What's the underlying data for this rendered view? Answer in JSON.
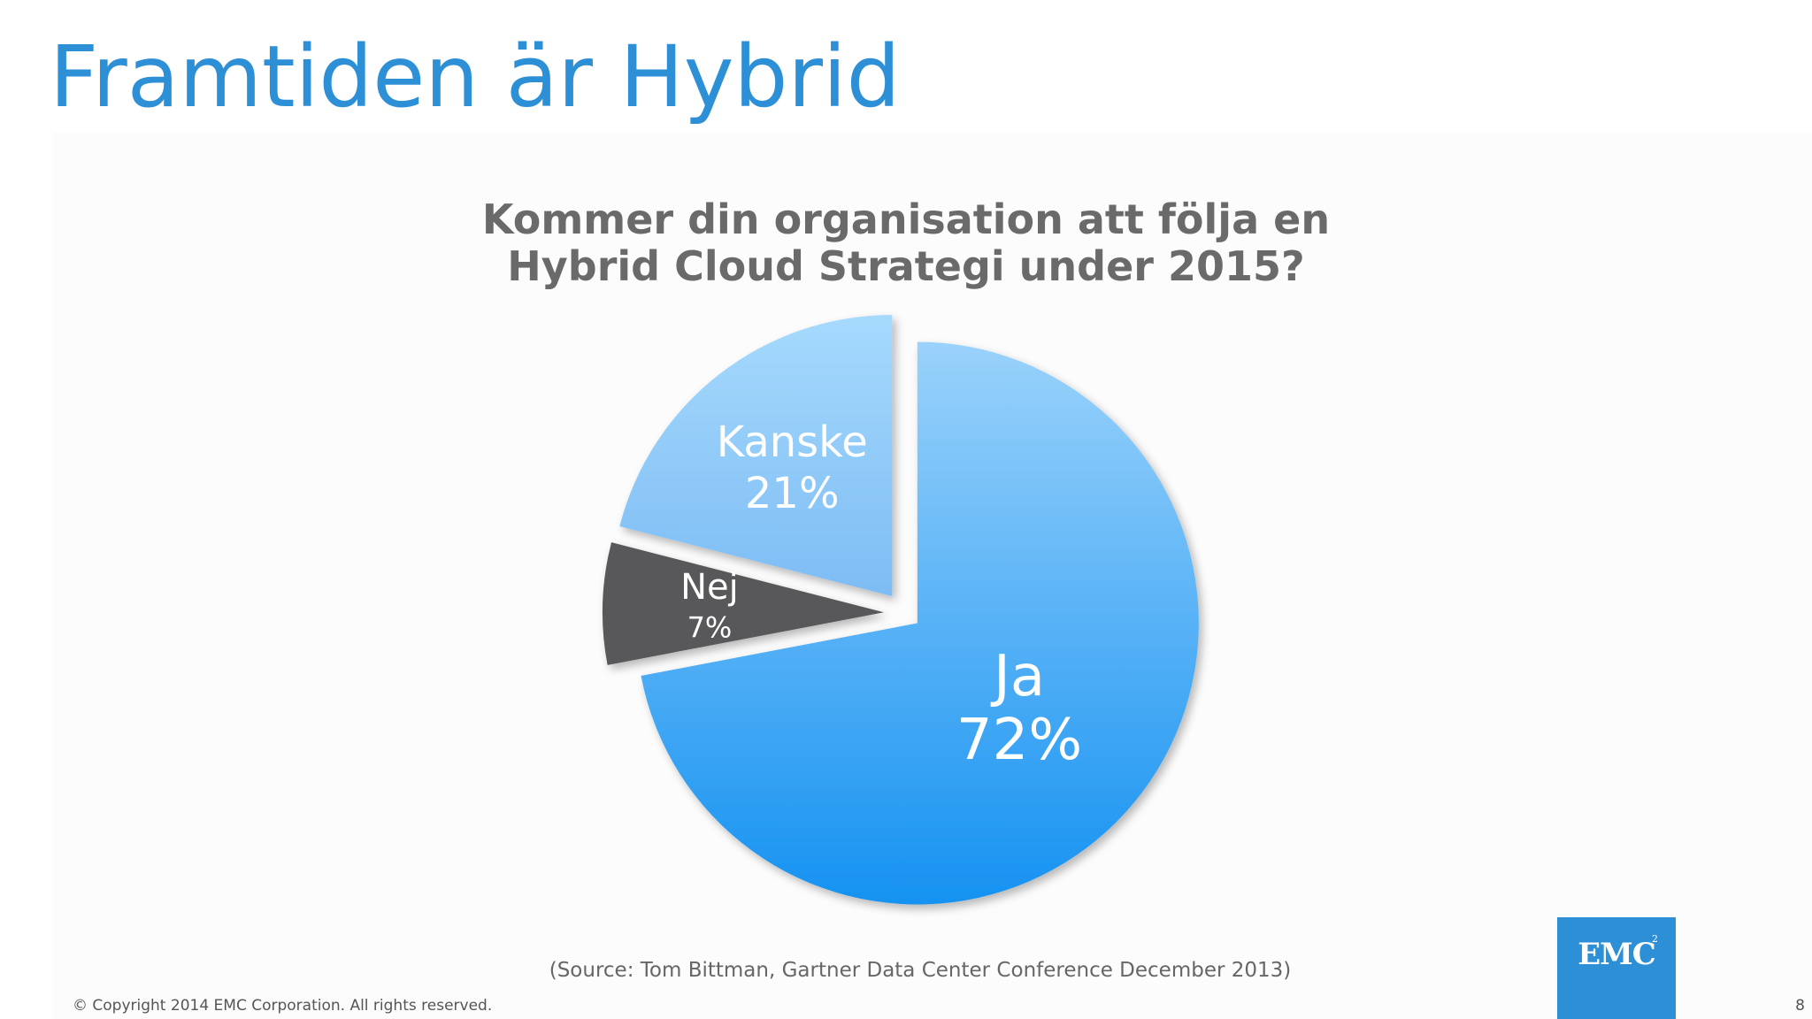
{
  "slide": {
    "title": "Framtiden är Hybrid",
    "source": "(Source: Tom Bittman, Gartner Data Center Conference December 2013)",
    "copyright": "© Copyright 2014 EMC Corporation. All rights reserved.",
    "page_number": "8",
    "logo_text": "EMC",
    "logo_superscript": "2",
    "logo_color": "#2d8fd6",
    "title_color": "#2d8fd6"
  },
  "chart_data": {
    "type": "pie",
    "title_lines": [
      "Kommer din organisation att följa en",
      "Hybrid Cloud Strategi under 2015?"
    ],
    "slices": [
      {
        "label": "Ja",
        "value": 72,
        "value_label": "72%",
        "color": "#3aa4f5"
      },
      {
        "label": "Nej",
        "value": 7,
        "value_label": "7%",
        "color": "#58585a"
      },
      {
        "label": "Kanske",
        "value": 21,
        "value_label": "21%",
        "color": "#8fcaf8"
      }
    ],
    "start_angle": "12 o'clock",
    "direction": "clockwise",
    "exploded": true,
    "legend": "none"
  }
}
